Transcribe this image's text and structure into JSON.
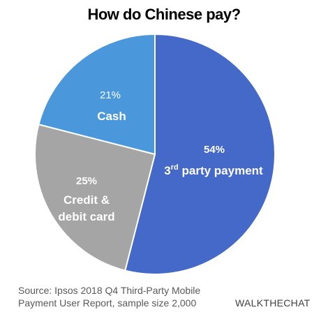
{
  "title": "How do Chinese pay?",
  "source_note": "Source: Ipsos 2018 Q4 Third-Party Mobile Payment User Report, sample size 2,000",
  "brand": "WALKTHECHAT",
  "colors": {
    "third_party": "#4569C9",
    "credit_debit": "#A5A5A5",
    "cash": "#4A97DB",
    "label_text": "#FFFFFF"
  },
  "chart_data": {
    "type": "pie",
    "title": "How do Chinese pay?",
    "slices": [
      {
        "label": "3rd party payment",
        "label_base": "3",
        "label_sup": "rd",
        "label_rest": " party payment",
        "percent_label": "54%",
        "value": 54,
        "color": "#4569C9"
      },
      {
        "label": "Credit & debit card",
        "label_lines": [
          "Credit &",
          "debit card"
        ],
        "percent_label": "25%",
        "value": 25,
        "color": "#A5A5A5"
      },
      {
        "label": "Cash",
        "label_lines": [
          "Cash"
        ],
        "percent_label": "21%",
        "value": 21,
        "color": "#4A97DB"
      }
    ]
  }
}
